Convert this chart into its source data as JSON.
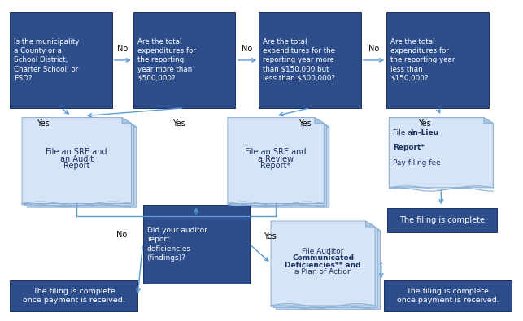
{
  "bg_color": "#ffffff",
  "dark_blue": "#2E4E8B",
  "arrow_color": "#5B9BD5",
  "page_front": "#D6E4F7",
  "page_back": "#C0D4EC",
  "page_edge": "#8AAFD4",
  "inlieu_face": "#D6E4F7",
  "inlieu_edge": "#8AAFD4",
  "q1_text": "Is the municipality\na County or a\nSchool District,\nCharter School, or\nESD?",
  "q2_text": "Are the total\nexpenditures for\nthe reporting\nyear more than\n$500,000?",
  "q3_text": "Are the total\nexpenditures for the\nreporting year more\nthan $150,000 but\nless than $500,000?",
  "q4_text": "Are the total\nexpenditures for\nthe reporting year\nless than\n$150,000?",
  "q5_text": "Did your auditor\nreport\ndeficiencies\n(findings)?",
  "doc1_text": "File an SRE and\nan Audit\nReport",
  "doc2_text": "File an SRE and\na Review\nReport*",
  "doc3_text_parts": [
    "File Auditor\n",
    "Communicated\nDeficiencies**",
    " and\na Plan of Action"
  ],
  "t1_text": "The filing is complete",
  "t2_text": "The filing is complete\nonce payment is received.",
  "t3_text": "The filing is complete\nonce payment is received.",
  "no_label": "No",
  "yes_label": "Yes"
}
